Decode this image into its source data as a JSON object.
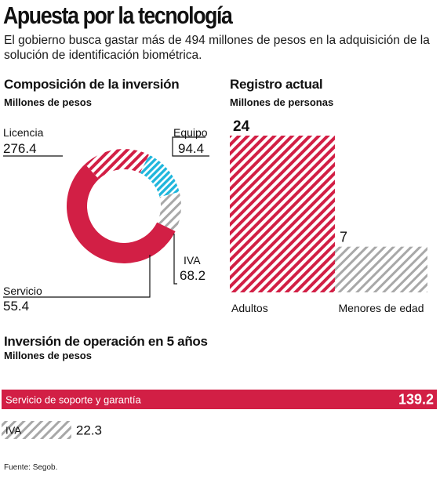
{
  "header": {
    "title": "Apuesta por la tecnología",
    "subtitle": "El gobierno busca gastar más de 494 millones de pesos en la adquisición de la solución de identificación biométrica."
  },
  "composicion": {
    "title": "Composición de la inversión",
    "unit": "Millones de pesos"
  },
  "registro": {
    "title": "Registro actual",
    "unit": "Millones de personas"
  },
  "operacion": {
    "title": "Inversión de operación en 5 años",
    "unit": "Millones de pesos"
  },
  "source": "Fuente: Segob.",
  "colors": {
    "crimson": "#d21f45",
    "gray_stripe": "#a8a8a8",
    "cyan": "#1fb6dc",
    "text": "#111111"
  },
  "chart_data": [
    {
      "type": "pie",
      "variant": "donut",
      "unit": "Millones de pesos",
      "slices": [
        {
          "label": "Licencia",
          "value": 276.4,
          "value_label": "276.4",
          "color": "#d21f45",
          "fill": "solid"
        },
        {
          "label": "Equipo",
          "value": 94.4,
          "value_label": "94.4",
          "color": "#d21f45",
          "fill": "striped"
        },
        {
          "label": "IVA",
          "value": 68.2,
          "value_label": "68.2",
          "color": "#1fb6dc",
          "fill": "striped"
        },
        {
          "label": "Servicio",
          "value": 55.4,
          "value_label": "55.4",
          "color": "#a8a8a8",
          "fill": "striped"
        }
      ]
    },
    {
      "type": "bar",
      "unit": "Millones de personas",
      "categories": [
        "Adultos",
        "Menores de edad"
      ],
      "values": [
        24,
        7
      ],
      "value_labels": [
        "24",
        "7"
      ],
      "colors": [
        "#d21f45",
        "#a8a8a8"
      ],
      "ylim": [
        0,
        24
      ]
    },
    {
      "type": "bar",
      "orientation": "horizontal",
      "unit": "Millones de pesos",
      "categories": [
        "Servicio de soporte y garantía",
        "IVA"
      ],
      "values": [
        139.2,
        22.3
      ],
      "value_labels": [
        "139.2",
        "22.3"
      ],
      "colors": [
        "#d21f45",
        "#a8a8a8"
      ],
      "xlim": [
        0,
        139.2
      ]
    }
  ]
}
